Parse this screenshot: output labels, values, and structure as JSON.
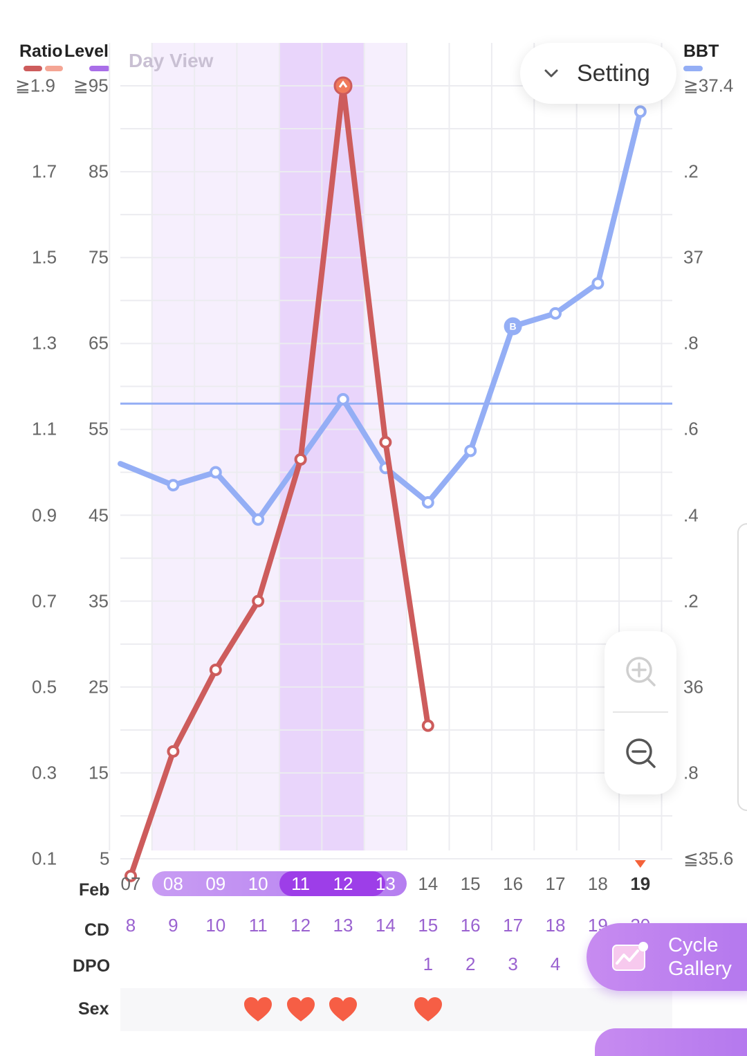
{
  "legend": {
    "ratio_label": "Ratio",
    "level_label": "Level",
    "bbt_label": "BBT",
    "ratio_colors": [
      "#cd5c5c",
      "#f4a594"
    ],
    "level_color": "#a96ee8",
    "bbt_color": "#94aef5"
  },
  "view_label": "Day View",
  "setting": {
    "label": "Setting"
  },
  "axes": {
    "ratio_ticks": [
      "≧1.9",
      "1.7",
      "1.5",
      "1.3",
      "1.1",
      "0.9",
      "0.7",
      "0.5",
      "0.3",
      "0.1"
    ],
    "level_ticks": [
      "≧95",
      "85",
      "75",
      "65",
      "55",
      "45",
      "35",
      "25",
      "15",
      "5"
    ],
    "bbt_ticks": [
      "≧37.4",
      ".2",
      "37",
      ".8",
      ".6",
      ".4",
      ".2",
      "36",
      ".8",
      "≦35.6"
    ]
  },
  "rows": {
    "month_label": "Feb",
    "cd_label": "CD",
    "dpo_label": "DPO",
    "sex_label": "Sex"
  },
  "dates": [
    "07",
    "08",
    "09",
    "10",
    "11",
    "12",
    "13",
    "14",
    "15",
    "16",
    "17",
    "18",
    "19"
  ],
  "today_index": 12,
  "fertile_window": {
    "start_index": 1,
    "end_index": 6,
    "peak_start_index": 4,
    "peak_end_index": 5
  },
  "cd": [
    "8",
    "9",
    "10",
    "11",
    "12",
    "13",
    "14",
    "15",
    "16",
    "17",
    "18",
    "19",
    "20"
  ],
  "dpo": [
    "",
    "",
    "",
    "",
    "",
    "",
    "",
    "1",
    "2",
    "3",
    "4",
    "",
    ""
  ],
  "sex": [
    false,
    false,
    false,
    true,
    true,
    true,
    false,
    true,
    false,
    false,
    false,
    false,
    false
  ],
  "chart_data": {
    "type": "line",
    "x": [
      "07",
      "08",
      "09",
      "10",
      "11",
      "12",
      "13",
      "14",
      "15",
      "16",
      "17",
      "18",
      "19"
    ],
    "series": [
      {
        "name": "Ratio",
        "color": "#cd5c5c",
        "values": [
          0.06,
          0.35,
          0.54,
          0.7,
          1.03,
          1.9,
          1.07,
          0.41,
          null,
          null,
          null,
          null,
          null
        ],
        "y_range": [
          0.1,
          1.9
        ]
      },
      {
        "name": "BBT",
        "color": "#94aef5",
        "values": [
          null,
          36.47,
          36.5,
          36.39,
          36.53,
          36.67,
          36.51,
          36.43,
          36.55,
          36.84,
          36.87,
          36.94,
          37.34
        ],
        "y_range": [
          35.6,
          37.4
        ],
        "marker_labels": [
          null,
          null,
          null,
          null,
          null,
          null,
          null,
          null,
          null,
          "B",
          null,
          null,
          null
        ],
        "coverline": 36.66
      }
    ],
    "level_range": [
      5,
      95
    ],
    "grid": true
  },
  "zoom": {
    "in": "zoom-in",
    "out": "zoom-out"
  },
  "gallery": {
    "label_line1": "Cycle",
    "label_line2": "Gallery"
  }
}
